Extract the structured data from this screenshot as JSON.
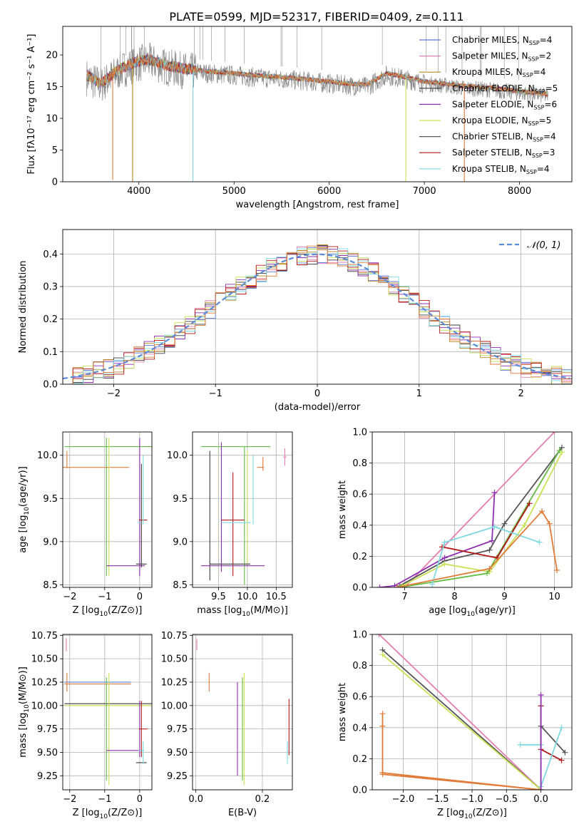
{
  "figure": {
    "title": "PLATE=0599, MJD=52317, FIBERID=0409, z=0.111"
  },
  "colors": {
    "Chabrier MILES": "#5b7bd5",
    "Salpeter MILES": "#e57fb0",
    "Kroupa MILES": "#b5851d",
    "Chabrier ELODIE": "#3a3a3a",
    "Salpeter ELODIE": "#8e2fb0",
    "Kroupa ELODIE": "#c9e255",
    "Chabrier STELIB": "#555555",
    "Salpeter STELIB": "#b21818",
    "Kroupa STELIB": "#7fd8e0",
    "data": "#8a8a8a",
    "orange": "#e07b39",
    "green": "#66bb44",
    "normal_curve": "#5b8bd6",
    "grid": "#b0b0b0"
  },
  "chart_data": [
    {
      "id": "spectrum",
      "type": "line",
      "title": "PLATE=0599, MJD=52317, FIBERID=0409, z=0.111",
      "xlabel": "wavelength [Angstrom, rest frame]",
      "ylabel": "Flux [fλ10⁻¹⁷ erg cm⁻² s⁻¹ A⁻¹]",
      "xlim": [
        3200,
        8550
      ],
      "ylim": [
        0,
        24.5
      ],
      "xticks": [
        4000,
        5000,
        6000,
        7000,
        8000
      ],
      "yticks": [
        0,
        5,
        10,
        15,
        20
      ],
      "grid": false,
      "legend_position": "top-right",
      "legend": [
        {
          "label": "Chabrier MILES, N",
          "sub": "SSP",
          "suffix": "=4",
          "color": "#5b7bd5"
        },
        {
          "label": "Salpeter MILES, N",
          "sub": "SSP",
          "suffix": "=2",
          "color": "#e57fb0"
        },
        {
          "label": "Kroupa MILES, N",
          "sub": "SSP",
          "suffix": "=4",
          "color": "#b5851d"
        },
        {
          "label": "Chabrier ELODIE, N",
          "sub": "SSP",
          "suffix": "=5",
          "color": "#3a3a3a"
        },
        {
          "label": "Salpeter ELODIE, N",
          "sub": "SSP",
          "suffix": "=6",
          "color": "#8e2fb0"
        },
        {
          "label": "Kroupa ELODIE, N",
          "sub": "SSP",
          "suffix": "=5",
          "color": "#c9e255"
        },
        {
          "label": "Chabrier STELIB, N",
          "sub": "SSP",
          "suffix": "=4",
          "color": "#555555"
        },
        {
          "label": "Salpeter STELIB, N",
          "sub": "SSP",
          "suffix": "=3",
          "color": "#b21818"
        },
        {
          "label": "Kroupa STELIB, N",
          "sub": "SSP",
          "suffix": "=4",
          "color": "#7fd8e0"
        }
      ],
      "continuum": {
        "x": [
          3450,
          3600,
          3800,
          3950,
          4100,
          4300,
          4500,
          4800,
          5000,
          5200,
          5500,
          5800,
          6000,
          6200,
          6400,
          6600,
          6800,
          7000,
          7200,
          7400,
          7700,
          8000,
          8300
        ],
        "y": [
          16.5,
          15.2,
          17.5,
          18.5,
          19.0,
          18.0,
          17.5,
          17.0,
          16.8,
          16.5,
          16.2,
          15.8,
          15.5,
          15.2,
          15.0,
          16.8,
          16.2,
          15.5,
          15.2,
          14.8,
          14.5,
          14.0,
          13.5
        ]
      },
      "dips": [
        {
          "x": 3725,
          "y": 0.3,
          "color": "#e07b39"
        },
        {
          "x": 3934,
          "y": 0.0,
          "color": "#b5851d"
        },
        {
          "x": 4568,
          "y": 0.0,
          "color": "#7fd8e0"
        },
        {
          "x": 6805,
          "y": 0.0,
          "color": "#c9e255"
        },
        {
          "x": 7420,
          "y": 0.0,
          "color": "#e07b39"
        }
      ]
    },
    {
      "id": "residuals",
      "type": "line",
      "xlabel": "(data-model)/error",
      "ylabel": "Normed distribution",
      "xlim": [
        -2.5,
        2.5
      ],
      "ylim": [
        0,
        0.475
      ],
      "xticks": [
        -2,
        -1,
        0,
        1,
        2
      ],
      "yticks": [
        0.0,
        0.1,
        0.2,
        0.3,
        0.4
      ],
      "grid": true,
      "legend_position": "top-right",
      "legend": [
        {
          "label": "𝒩(0, 1)",
          "color": "#5b8bd6",
          "dashed": true
        }
      ],
      "normal_curve": {
        "mean": 0,
        "sigma": 1
      }
    },
    {
      "id": "age-vs-Z",
      "type": "scatter",
      "xlabel": "Z [log10(Z/Z⊙)]",
      "ylabel": "age  [log10(age/yr)]",
      "xlim": [
        -2.2,
        0.35
      ],
      "ylim": [
        8.47,
        10.27
      ],
      "xticks": [
        -2,
        -1,
        0
      ],
      "yticks": [
        8.5,
        9.0,
        9.5,
        10.0
      ],
      "grid": true,
      "crosses": [
        {
          "x": -0.6,
          "xerr": 1.55,
          "y": 10.1,
          "yerr": 0.0,
          "color": "#66bb44"
        },
        {
          "x": -1.25,
          "xerr": 0.95,
          "y": 9.86,
          "yerr": 0.0,
          "color": "#e07b39"
        },
        {
          "x": -2.08,
          "xerr": 0.0,
          "y": 9.95,
          "yerr": 0.1,
          "color": "#e07b39"
        },
        {
          "x": -0.88,
          "xerr": 0.0,
          "y": 9.4,
          "yerr": 0.8,
          "color": "#c9e255"
        },
        {
          "x": -0.95,
          "xerr": 0.0,
          "y": 9.4,
          "yerr": 0.8,
          "color": "#66bb44"
        },
        {
          "x": -0.4,
          "xerr": 0.55,
          "y": 8.72,
          "yerr": 0.0,
          "color": "#8e2fb0"
        },
        {
          "x": 0.0,
          "xerr": 0.0,
          "y": 9.4,
          "yerr": 0.8,
          "color": "#8e2fb0"
        },
        {
          "x": 0.05,
          "xerr": 0.0,
          "y": 9.3,
          "yerr": 0.6,
          "color": "#3a3a3a"
        },
        {
          "x": 0.1,
          "xerr": 0.12,
          "y": 9.25,
          "yerr": 0.0,
          "color": "#b21818"
        },
        {
          "x": 0.05,
          "xerr": 0.15,
          "y": 8.74,
          "yerr": 0.0,
          "color": "#3a3a3a"
        },
        {
          "x": 0.1,
          "xerr": 0.0,
          "y": 9.6,
          "yerr": 0.4,
          "color": "#7fd8e0"
        },
        {
          "x": 0.0,
          "xerr": 0.05,
          "y": 9.22,
          "yerr": 0.0,
          "color": "#7fd8e0"
        }
      ]
    },
    {
      "id": "age-vs-mass",
      "type": "scatter",
      "xlabel": "mass [log10(M/M⊙)]",
      "ylabel": "",
      "xlim": [
        9.05,
        10.78
      ],
      "ylim": [
        8.47,
        10.27
      ],
      "xticks": [
        9.5,
        10.0,
        10.5
      ],
      "yticks": [
        8.5,
        9.0,
        9.5,
        10.0
      ],
      "grid": true,
      "crosses": [
        {
          "x": 9.8,
          "xerr": 0.6,
          "y": 10.1,
          "yerr": 0.0,
          "color": "#66bb44"
        },
        {
          "x": 10.23,
          "xerr": 0.06,
          "y": 9.86,
          "yerr": 0.0,
          "color": "#e07b39"
        },
        {
          "x": 10.27,
          "xerr": 0.0,
          "y": 9.9,
          "yerr": 0.08,
          "color": "#e07b39"
        },
        {
          "x": 10.65,
          "xerr": 0.03,
          "y": 9.98,
          "yerr": 0.1,
          "color": "#e57fb0"
        },
        {
          "x": 9.35,
          "xerr": 0.0,
          "y": 9.3,
          "yerr": 0.75,
          "color": "#3a3a3a"
        },
        {
          "x": 9.55,
          "xerr": 0.0,
          "y": 9.4,
          "yerr": 0.75,
          "color": "#8e2fb0"
        },
        {
          "x": 9.75,
          "xerr": 0.0,
          "y": 9.2,
          "yerr": 0.6,
          "color": "#b21818"
        },
        {
          "x": 9.95,
          "xerr": 0.0,
          "y": 9.3,
          "yerr": 0.8,
          "color": "#66bb44"
        },
        {
          "x": 10.0,
          "xerr": 0.0,
          "y": 9.4,
          "yerr": 0.65,
          "color": "#c9e255"
        },
        {
          "x": 9.8,
          "xerr": 0.25,
          "y": 9.22,
          "yerr": 0.0,
          "color": "#7fd8e0"
        },
        {
          "x": 9.75,
          "xerr": 0.2,
          "y": 9.25,
          "yerr": 0.0,
          "color": "#b21818"
        },
        {
          "x": 9.7,
          "xerr": 0.35,
          "y": 8.74,
          "yerr": 0.0,
          "color": "#3a3a3a"
        },
        {
          "x": 9.75,
          "xerr": 0.55,
          "y": 8.72,
          "yerr": 0.0,
          "color": "#8e2fb0"
        },
        {
          "x": 10.1,
          "xerr": 0.0,
          "y": 9.6,
          "yerr": 0.4,
          "color": "#7fd8e0"
        }
      ]
    },
    {
      "id": "weight-vs-age",
      "type": "line",
      "xlabel": "age  [log10(age/yr)]",
      "ylabel": "mass weight",
      "xlim": [
        6.35,
        10.35
      ],
      "ylim": [
        0,
        1.0
      ],
      "xticks": [
        7,
        8,
        9,
        10
      ],
      "yticks": [
        0.0,
        0.2,
        0.4,
        0.6,
        0.8,
        1.0
      ],
      "grid": true,
      "series": [
        {
          "color": "#e57fb0",
          "x": [
            7.0,
            10.0
          ],
          "y": [
            0.0,
            1.0
          ]
        },
        {
          "color": "#555555",
          "x": [
            6.9,
            7.8,
            8.7,
            9.0,
            10.15
          ],
          "y": [
            0.01,
            0.17,
            0.24,
            0.41,
            0.9
          ]
        },
        {
          "color": "#c9e255",
          "x": [
            6.95,
            7.8,
            8.7,
            9.4,
            10.15
          ],
          "y": [
            0.01,
            0.15,
            0.1,
            0.4,
            0.87
          ]
        },
        {
          "color": "#66bb44",
          "x": [
            6.9,
            8.65,
            10.1
          ],
          "y": [
            0.0,
            0.09,
            0.88
          ]
        },
        {
          "color": "#8e2fb0",
          "x": [
            6.5,
            6.8,
            7.8,
            8.75,
            8.8
          ],
          "y": [
            0.0,
            0.01,
            0.19,
            0.3,
            0.61
          ]
        },
        {
          "color": "#b21818",
          "x": [
            7.75,
            8.85,
            9.5
          ],
          "y": [
            0.26,
            0.19,
            0.54
          ]
        },
        {
          "color": "#7fd8e0",
          "x": [
            7.55,
            7.8,
            8.8,
            9.7
          ],
          "y": [
            0.02,
            0.29,
            0.39,
            0.29
          ]
        },
        {
          "color": "#e07b39",
          "x": [
            6.85,
            8.7,
            9.75,
            9.9,
            10.05
          ],
          "y": [
            0.0,
            0.12,
            0.49,
            0.41,
            0.11
          ]
        }
      ]
    },
    {
      "id": "mass-vs-Z",
      "type": "scatter",
      "xlabel": "Z [log10(Z/Z⊙)]",
      "ylabel": "mass [log10(M/M⊙)]",
      "xlim": [
        -2.2,
        0.35
      ],
      "ylim": [
        9.1,
        10.76
      ],
      "xticks": [
        -2,
        -1,
        0
      ],
      "yticks": [
        9.25,
        9.5,
        9.75,
        10.0,
        10.25,
        10.5,
        10.75
      ],
      "grid": true,
      "crosses": [
        {
          "x": -2.1,
          "xerr": 0.0,
          "y": 10.65,
          "yerr": 0.07,
          "color": "#e57fb0"
        },
        {
          "x": -1.2,
          "xerr": 0.95,
          "y": 10.25,
          "yerr": 0.0,
          "color": "#5b7bd5"
        },
        {
          "x": -1.2,
          "xerr": 0.95,
          "y": 10.23,
          "yerr": 0.0,
          "color": "#e07b39"
        },
        {
          "x": -2.08,
          "xerr": 0.0,
          "y": 10.25,
          "yerr": 0.1,
          "color": "#e07b39"
        },
        {
          "x": -0.6,
          "xerr": 1.55,
          "y": 10.02,
          "yerr": 0.0,
          "color": "#3a3a3a"
        },
        {
          "x": -0.6,
          "xerr": 1.55,
          "y": 10.0,
          "yerr": 0.0,
          "color": "#c9e255"
        },
        {
          "x": -0.95,
          "xerr": 0.0,
          "y": 9.75,
          "yerr": 0.55,
          "color": "#66bb44"
        },
        {
          "x": -0.88,
          "xerr": 0.0,
          "y": 9.75,
          "yerr": 0.6,
          "color": "#c9e255"
        },
        {
          "x": -0.45,
          "xerr": 0.5,
          "y": 9.52,
          "yerr": 0.0,
          "color": "#8e2fb0"
        },
        {
          "x": 0.0,
          "xerr": 0.0,
          "y": 9.75,
          "yerr": 0.3,
          "color": "#8e2fb0"
        },
        {
          "x": 0.05,
          "xerr": 0.0,
          "y": 9.75,
          "yerr": 0.3,
          "color": "#b21818"
        },
        {
          "x": 0.1,
          "xerr": 0.12,
          "y": 9.75,
          "yerr": 0.0,
          "color": "#b21818"
        },
        {
          "x": 0.05,
          "xerr": 0.15,
          "y": 9.39,
          "yerr": 0.0,
          "color": "#3a3a3a"
        },
        {
          "x": 0.05,
          "xerr": 0.08,
          "y": 9.52,
          "yerr": 0.0,
          "color": "#7fd8e0"
        },
        {
          "x": 0.1,
          "xerr": 0.0,
          "y": 9.5,
          "yerr": 0.12,
          "color": "#7fd8e0"
        }
      ]
    },
    {
      "id": "mass-vs-EBV",
      "type": "scatter",
      "xlabel": "E(B-V)",
      "ylabel": "",
      "xlim": [
        -0.01,
        0.29
      ],
      "ylim": [
        9.1,
        10.76
      ],
      "xticks": [
        0.0,
        0.2
      ],
      "yticks": [
        9.25,
        9.5,
        9.75,
        10.0,
        10.25,
        10.5,
        10.75
      ],
      "grid": true,
      "crosses": [
        {
          "x": 0.003,
          "xerr": 0.0,
          "y": 10.65,
          "yerr": 0.06,
          "color": "#e57fb0"
        },
        {
          "x": 0.04,
          "xerr": 0.0,
          "y": 10.25,
          "yerr": 0.1,
          "color": "#e07b39"
        },
        {
          "x": 0.125,
          "xerr": 0.0,
          "y": 9.75,
          "yerr": 0.5,
          "color": "#8e2fb0"
        },
        {
          "x": 0.14,
          "xerr": 0.0,
          "y": 9.75,
          "yerr": 0.55,
          "color": "#66bb44"
        },
        {
          "x": 0.145,
          "xerr": 0.0,
          "y": 9.75,
          "yerr": 0.6,
          "color": "#c9e255"
        },
        {
          "x": 0.28,
          "xerr": 0.0,
          "y": 9.77,
          "yerr": 0.3,
          "color": "#b21818"
        },
        {
          "x": 0.275,
          "xerr": 0.0,
          "y": 9.5,
          "yerr": 0.12,
          "color": "#7fd8e0"
        }
      ]
    },
    {
      "id": "weight-vs-Z",
      "type": "line",
      "xlabel": "Z [log10(Z/Z⊙)]",
      "ylabel": "mass weight",
      "xlim": [
        -2.45,
        0.45
      ],
      "ylim": [
        0,
        1.0
      ],
      "xticks": [
        -2.0,
        -1.5,
        -1.0,
        -0.5,
        0.0
      ],
      "yticks": [
        0.0,
        0.2,
        0.4,
        0.6,
        0.8,
        1.0
      ],
      "grid": true,
      "series": [
        {
          "color": "#e57fb0",
          "x": [
            -2.35,
            0.0
          ],
          "y": [
            1.0,
            0.0
          ]
        },
        {
          "color": "#555555",
          "x": [
            -2.3,
            0.0
          ],
          "y": [
            0.9,
            0.0
          ]
        },
        {
          "color": "#c9e255",
          "x": [
            -2.3,
            0.0
          ],
          "y": [
            0.87,
            0.0
          ]
        },
        {
          "color": "#e07b39",
          "x": [
            -2.3,
            -2.3,
            -2.3,
            0.0,
            -2.3
          ],
          "y": [
            0.49,
            0.41,
            0.11,
            0.0,
            0.1
          ]
        },
        {
          "color": "#b21818",
          "x": [
            0.0,
            0.0,
            0.3
          ],
          "y": [
            0.54,
            0.26,
            0.19
          ]
        },
        {
          "color": "#555555",
          "x": [
            0.0,
            0.35
          ],
          "y": [
            0.41,
            0.24
          ]
        },
        {
          "color": "#7fd8e0",
          "x": [
            -0.3,
            0.0,
            0.0,
            0.3
          ],
          "y": [
            0.29,
            0.29,
            0.02,
            0.4
          ]
        },
        {
          "color": "#8e2fb0",
          "x": [
            0.0,
            0.0
          ],
          "y": [
            0.61,
            0.0
          ]
        }
      ]
    }
  ]
}
